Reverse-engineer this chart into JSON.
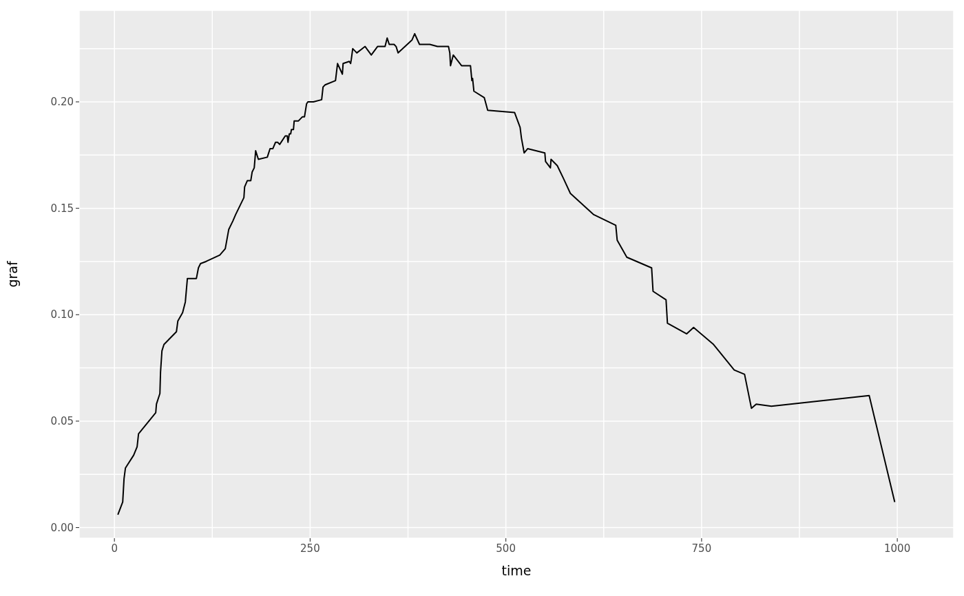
{
  "chart_data": {
    "type": "line",
    "xlabel": "time",
    "ylabel": "graf",
    "x": [
      4.4,
      10.6,
      12.3,
      14.1,
      24.6,
      29.0,
      30.8,
      52.8,
      53.7,
      58.1,
      58.9,
      60.7,
      63.3,
      79.2,
      81.0,
      87.1,
      90.6,
      93.2,
      104.7,
      107.3,
      110.0,
      117.0,
      134.6,
      141.6,
      146.0,
      151.3,
      154.8,
      165.4,
      166.3,
      169.8,
      174.2,
      175.9,
      178.6,
      180.4,
      183.9,
      195.3,
      198.8,
      202.3,
      205.8,
      208.5,
      211.1,
      218.2,
      220.8,
      221.7,
      223.4,
      225.2,
      226.1,
      228.7,
      229.6,
      234.9,
      240.2,
      242.8,
      245.4,
      247.1,
      254.2,
      264.7,
      266.5,
      269.2,
      282.4,
      285.0,
      291.2,
      292.1,
      300.0,
      301.7,
      302.6,
      304.4,
      309.6,
      320.2,
      328.1,
      336.1,
      345.7,
      348.4,
      351.0,
      357.2,
      359.8,
      362.4,
      380.0,
      383.5,
      389.7,
      402.9,
      412.6,
      426.7,
      428.4,
      429.3,
      432.8,
      443.4,
      448.7,
      454.8,
      456.6,
      457.5,
      459.2,
      472.4,
      476.8,
      511.1,
      518.2,
      519.9,
      523.4,
      527.8,
      549.8,
      550.7,
      556.9,
      557.7,
      565.7,
      573.6,
      582.4,
      612.3,
      640.4,
      642.2,
      654.5,
      686.2,
      688.0,
      704.6,
      706.4,
      731.0,
      739.8,
      765.3,
      791.7,
      804.9,
      813.7,
      819.8,
      839.2,
      964.1,
      996.7
    ],
    "series": [
      {
        "color": "#000000",
        "values": [
          0.006,
          0.012,
          0.023,
          0.028,
          0.034,
          0.038,
          0.044,
          0.054,
          0.058,
          0.063,
          0.073,
          0.083,
          0.086,
          0.092,
          0.097,
          0.101,
          0.106,
          0.117,
          0.117,
          0.122,
          0.124,
          0.125,
          0.128,
          0.131,
          0.14,
          0.144,
          0.147,
          0.155,
          0.16,
          0.163,
          0.163,
          0.167,
          0.169,
          0.177,
          0.173,
          0.174,
          0.178,
          0.178,
          0.181,
          0.181,
          0.18,
          0.184,
          0.184,
          0.181,
          0.185,
          0.185,
          0.187,
          0.187,
          0.191,
          0.191,
          0.193,
          0.193,
          0.199,
          0.2,
          0.2,
          0.201,
          0.207,
          0.208,
          0.21,
          0.218,
          0.213,
          0.218,
          0.219,
          0.218,
          0.22,
          0.225,
          0.223,
          0.226,
          0.222,
          0.226,
          0.226,
          0.23,
          0.227,
          0.227,
          0.226,
          0.223,
          0.229,
          0.232,
          0.227,
          0.227,
          0.226,
          0.226,
          0.223,
          0.217,
          0.222,
          0.217,
          0.217,
          0.217,
          0.21,
          0.211,
          0.205,
          0.202,
          0.196,
          0.195,
          0.188,
          0.183,
          0.176,
          0.178,
          0.176,
          0.172,
          0.169,
          0.173,
          0.17,
          0.164,
          0.157,
          0.147,
          0.142,
          0.135,
          0.127,
          0.122,
          0.111,
          0.107,
          0.096,
          0.091,
          0.094,
          0.086,
          0.074,
          0.072,
          0.056,
          0.058,
          0.057,
          0.062,
          0.012
        ]
      }
    ],
    "xlim": [
      -45,
      1072
    ],
    "ylim": [
      -0.005,
      0.243
    ],
    "xticks": [
      0,
      {
        "value": 125,
        "label": null
      },
      250,
      {
        "value": 375,
        "label": null
      },
      500,
      {
        "value": 625,
        "label": null
      },
      750,
      {
        "value": 875,
        "label": null
      },
      1000
    ],
    "yticks": [
      {
        "value": 0,
        "label": "0.00"
      },
      {
        "value": 0.025,
        "label": null
      },
      {
        "value": 0.05,
        "label": "0.05"
      },
      {
        "value": 0.075,
        "label": null
      },
      {
        "value": 0.1,
        "label": "0.10"
      },
      {
        "value": 0.125,
        "label": null
      },
      {
        "value": 0.15,
        "label": "0.15"
      },
      {
        "value": 0.175,
        "label": null
      },
      {
        "value": 0.2,
        "label": "0.20"
      },
      {
        "value": 0.225,
        "label": null
      }
    ],
    "grid": true,
    "line_style": "solid",
    "marker": "none",
    "legend": false
  }
}
